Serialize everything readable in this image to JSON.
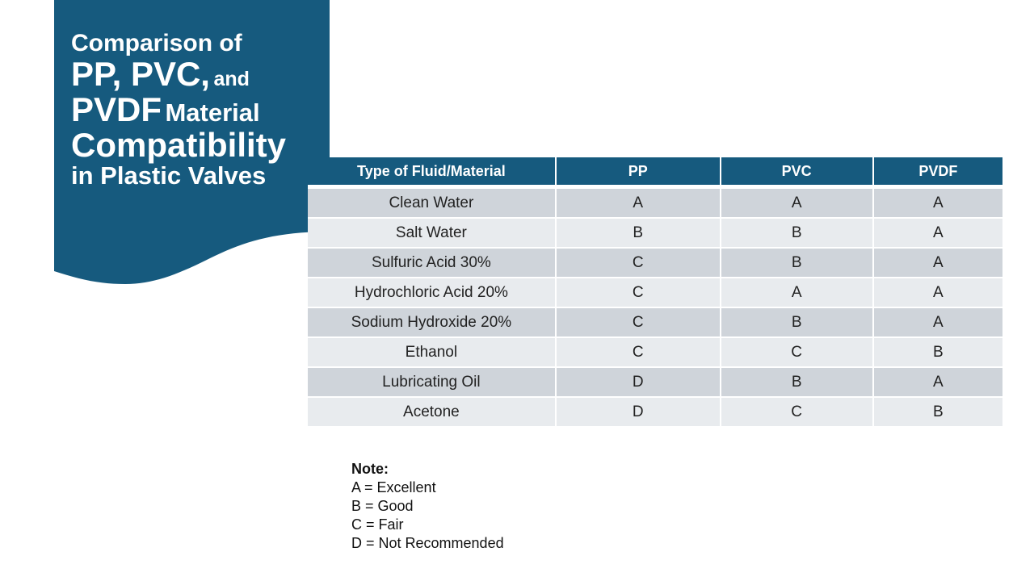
{
  "colors": {
    "title_bg": "#165a7e",
    "header_bg": "#165a7e",
    "row_dark": "#cfd4da",
    "row_light": "#e8ebee"
  },
  "title": {
    "line1": "Comparison of",
    "line2_big": "PP, PVC,",
    "line2_small": "and",
    "line3_big": "PVDF",
    "line3_small": "Material",
    "line4": "Compatibility",
    "line5": "in Plastic Valves"
  },
  "table": {
    "headers": [
      "Type of Fluid/Material",
      "PP",
      "PVC",
      "PVDF"
    ],
    "rows": [
      [
        "Clean Water",
        "A",
        "A",
        "A"
      ],
      [
        "Salt Water",
        "B",
        "B",
        "A"
      ],
      [
        "Sulfuric Acid 30%",
        "C",
        "B",
        "A"
      ],
      [
        "Hydrochloric Acid 20%",
        "C",
        "A",
        "A"
      ],
      [
        "Sodium Hydroxide 20%",
        "C",
        "B",
        "A"
      ],
      [
        "Ethanol",
        "C",
        "C",
        "B"
      ],
      [
        "Lubricating Oil",
        "D",
        "B",
        "A"
      ],
      [
        "Acetone",
        "D",
        "C",
        "B"
      ]
    ]
  },
  "note": {
    "title": "Note:",
    "items": [
      "A = Excellent",
      "B = Good",
      "C = Fair",
      "D = Not Recommended"
    ]
  }
}
